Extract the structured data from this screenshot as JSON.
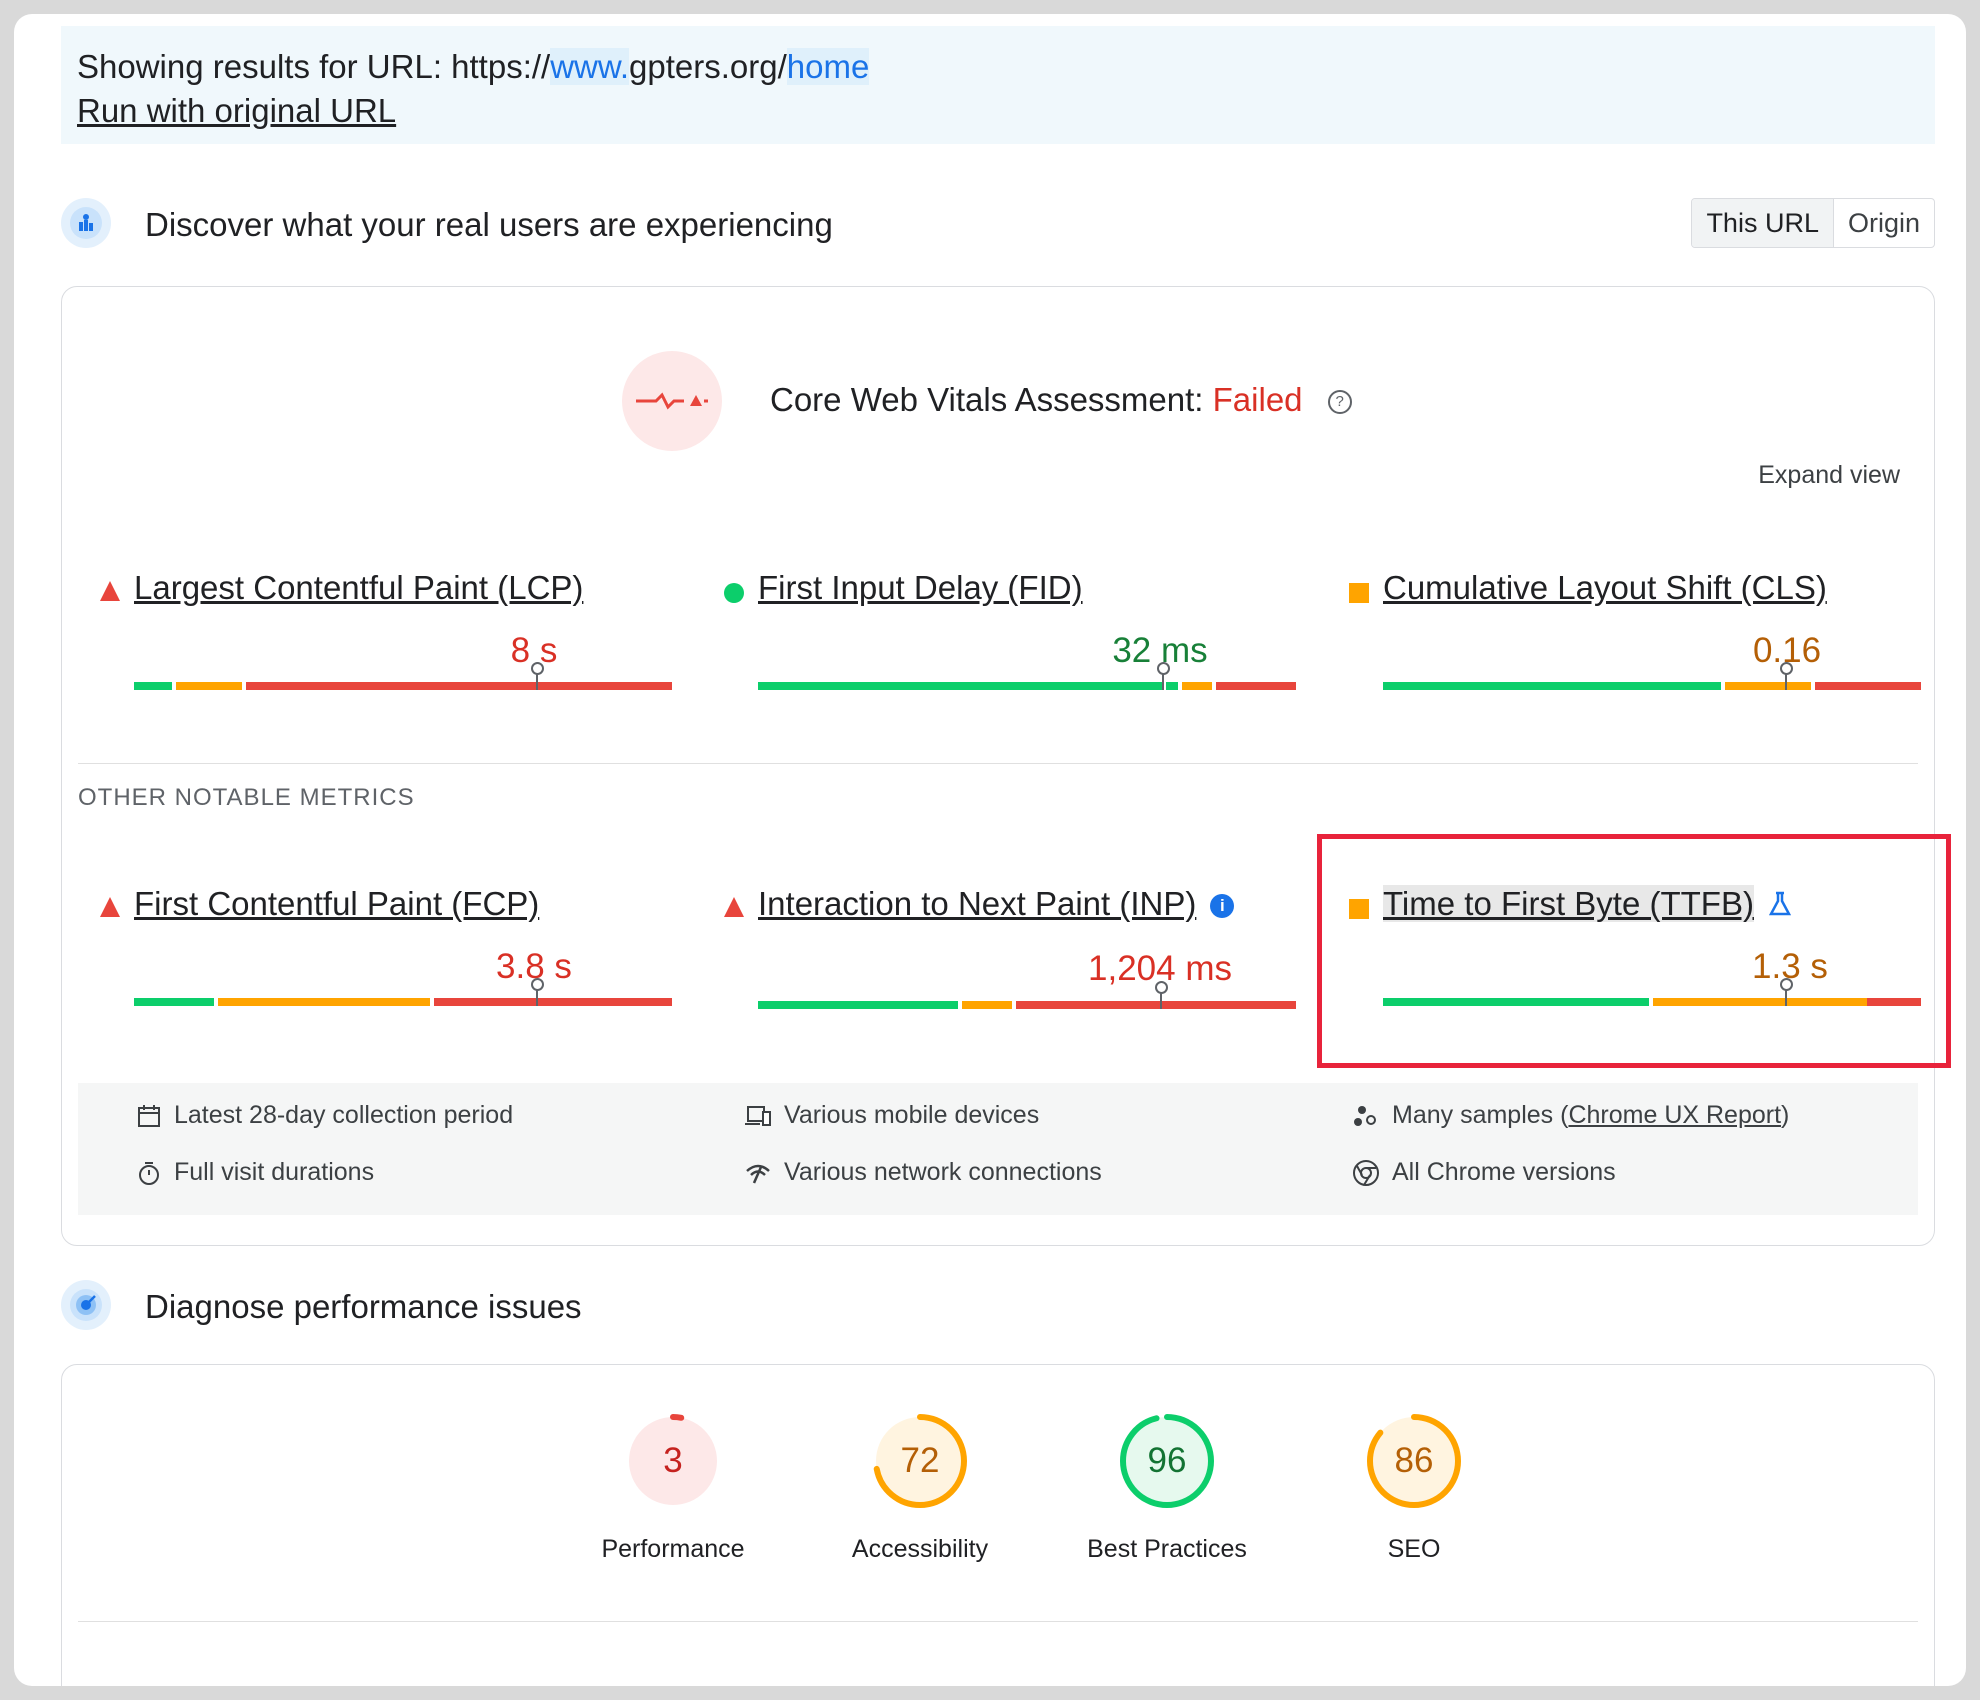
{
  "banner": {
    "prefix": "Showing results for URL: https://",
    "hl_www": "www.",
    "domain": "gpters.org/",
    "hl_home": "home",
    "run_link": "Run with original URL"
  },
  "field": {
    "title": "Discover what your real users are experiencing",
    "toggle": {
      "this_url": "This URL",
      "origin": "Origin"
    },
    "assessment": {
      "label": "Core Web Vitals Assessment:",
      "status": "Failed",
      "help": "?"
    },
    "expand": "Expand view",
    "core_metrics": [
      {
        "name": "Largest Contentful Paint (LCP)",
        "value": "8 s",
        "rating": "poor"
      },
      {
        "name": "First Input Delay (FID)",
        "value": "32 ms",
        "rating": "good"
      },
      {
        "name": "Cumulative Layout Shift (CLS)",
        "value": "0.16",
        "rating": "needs-improvement"
      }
    ],
    "other_label": "OTHER NOTABLE METRICS",
    "other_metrics": [
      {
        "name": "First Contentful Paint (FCP)",
        "value": "3.8 s",
        "rating": "poor"
      },
      {
        "name": "Interaction to Next Paint (INP)",
        "value": "1,204 ms",
        "rating": "poor",
        "info": "i"
      },
      {
        "name": "Time to First Byte (TTFB)",
        "value": "1.3 s",
        "rating": "needs-improvement"
      }
    ],
    "details": {
      "period": "Latest 28-day collection period",
      "devices": "Various mobile devices",
      "samples_prefix": "Many samples (",
      "samples_link": "Chrome UX Report",
      "samples_suffix": ")",
      "durations": "Full visit durations",
      "network": "Various network connections",
      "chrome": "All Chrome versions"
    }
  },
  "lab": {
    "title": "Diagnose performance issues",
    "scores": [
      {
        "label": "Performance",
        "value": "3",
        "score": 3,
        "color": "#e8453c"
      },
      {
        "label": "Accessibility",
        "value": "72",
        "score": 72,
        "color": "#ffa400"
      },
      {
        "label": "Best Practices",
        "value": "96",
        "score": 96,
        "color": "#0cce6b"
      },
      {
        "label": "SEO",
        "value": "86",
        "score": 86,
        "color": "#ffa400"
      }
    ]
  },
  "colors": {
    "good": "#0cce6b",
    "average": "#ffa400",
    "poor": "#e8453c",
    "accent": "#1a73e8",
    "highlight": "#e8233b"
  }
}
